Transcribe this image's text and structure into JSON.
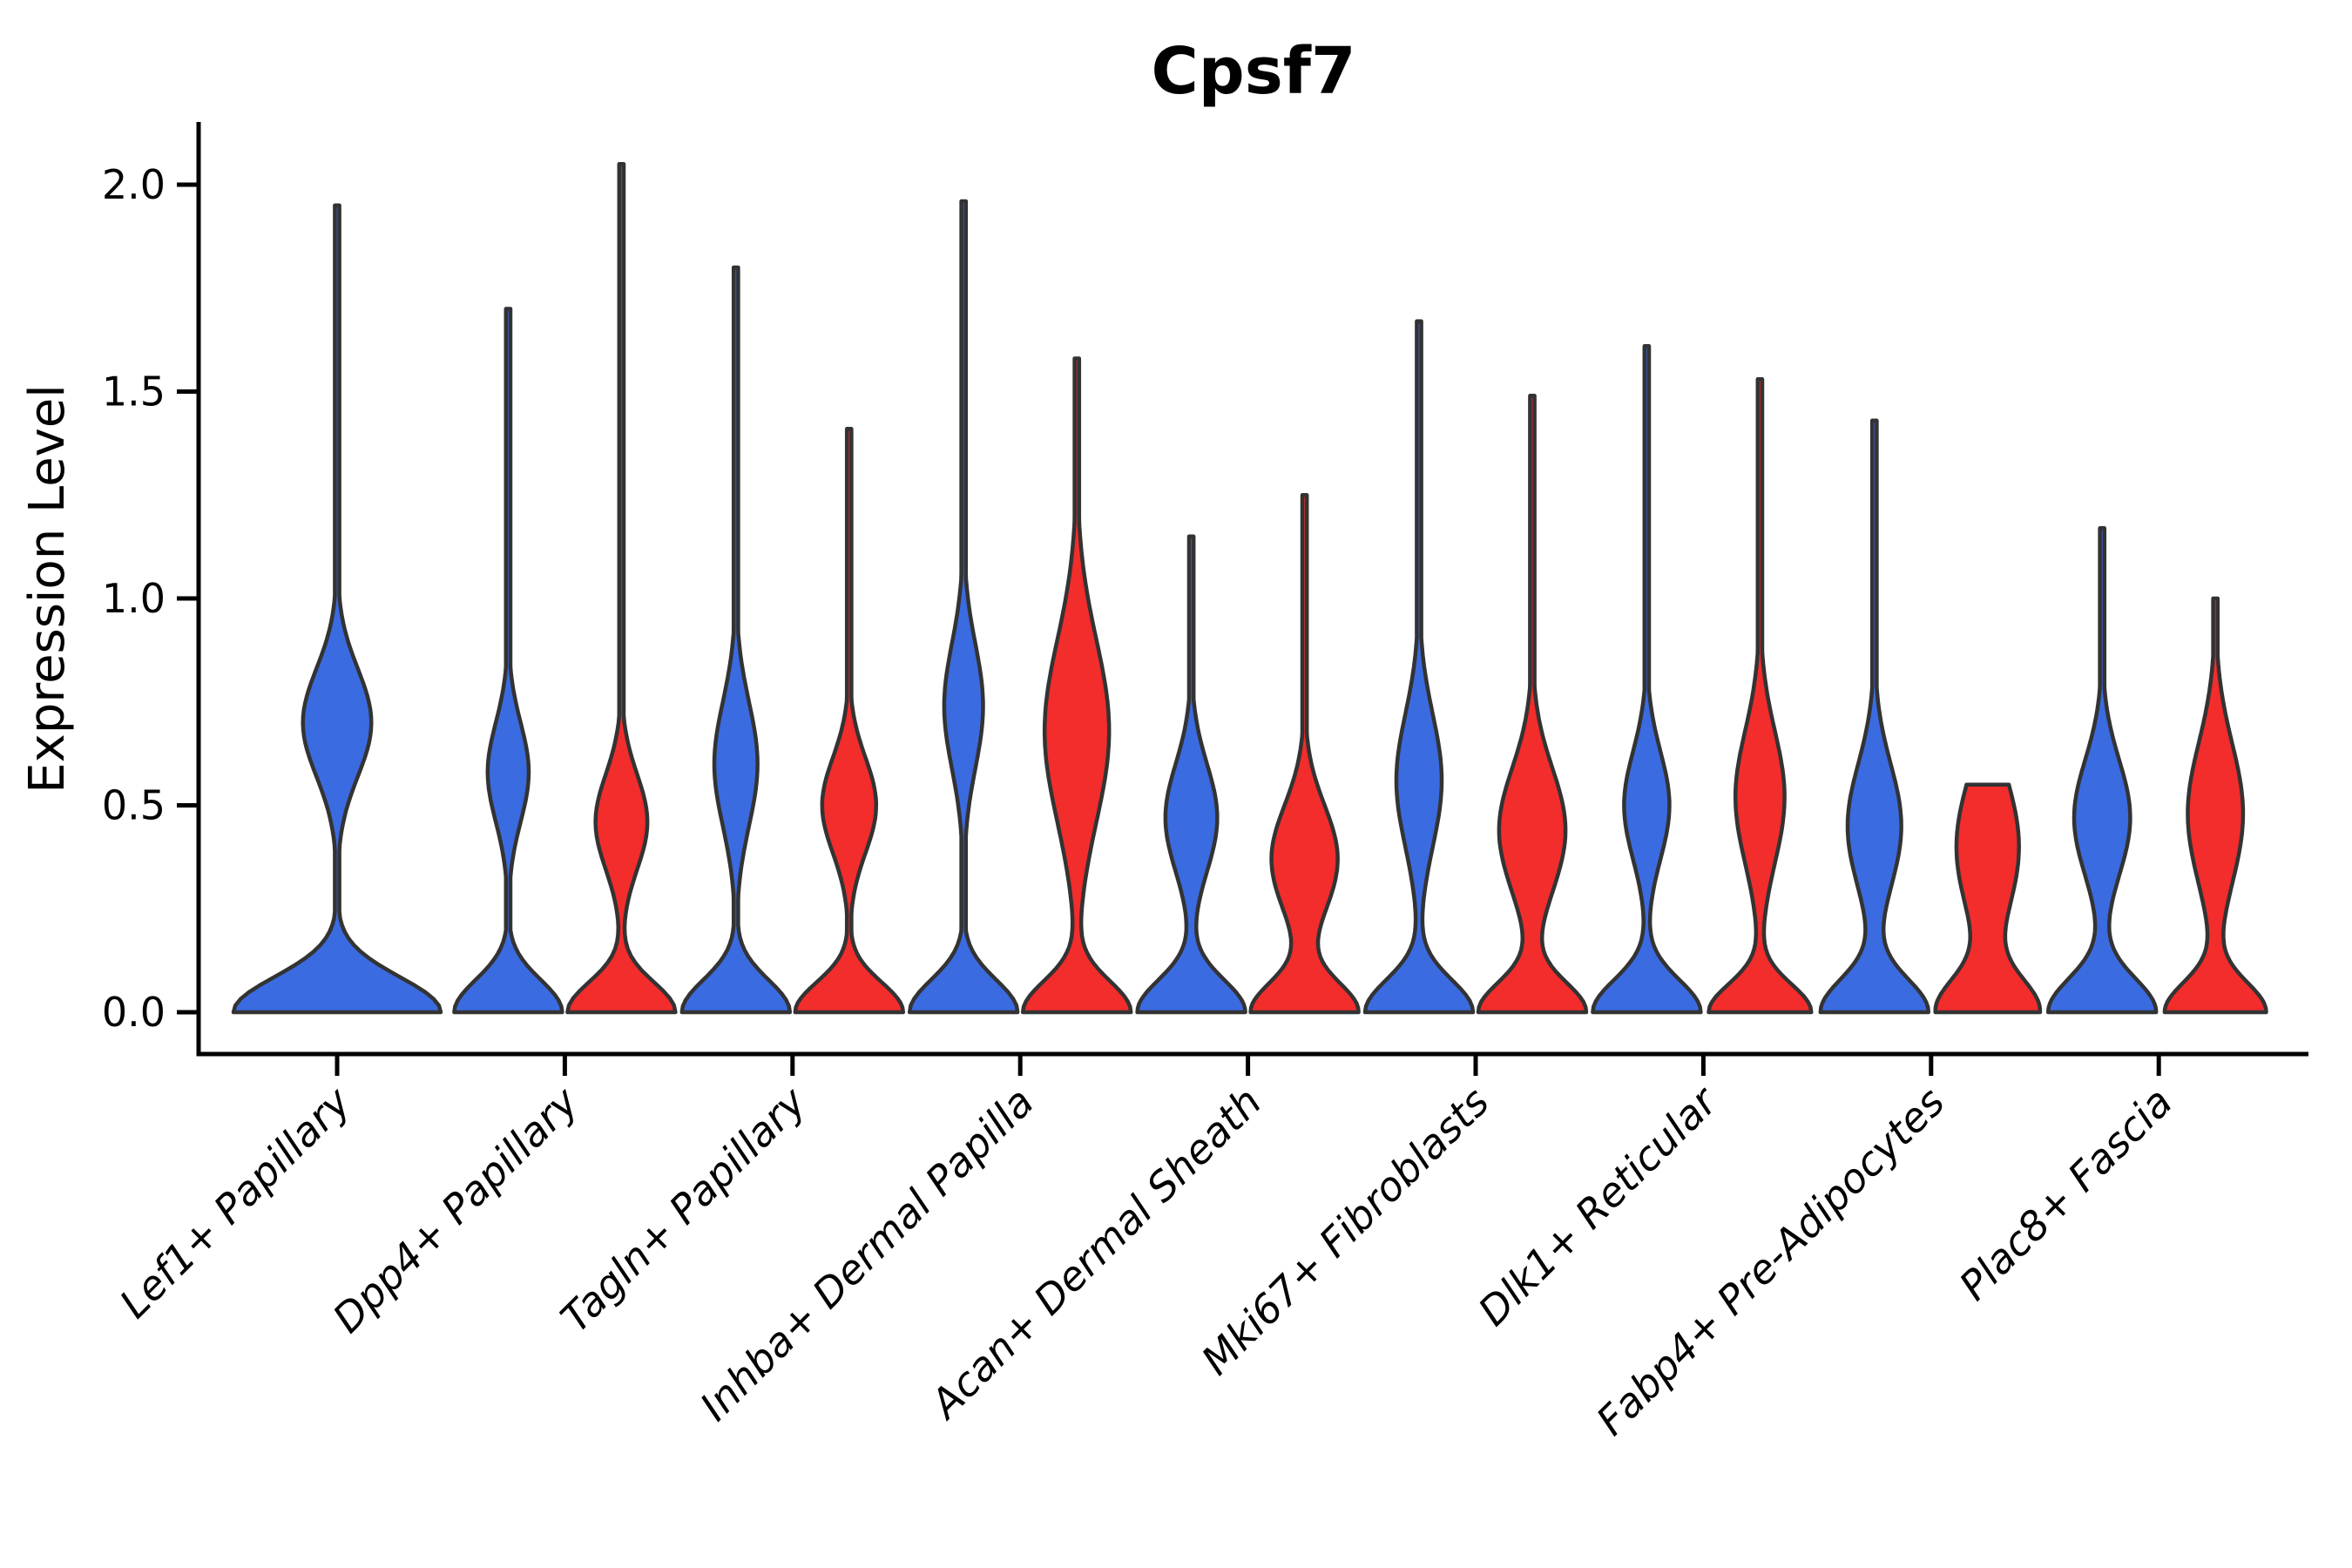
{
  "chart_data": {
    "type": "violin",
    "title": "Cpsf7",
    "ylabel": "Expression Level",
    "xlabel": "",
    "ylim": [
      0,
      2.15
    ],
    "yticks": [
      0,
      0.5,
      1.0,
      1.5,
      2.0
    ],
    "ytick_labels": [
      "0.0",
      "0.5",
      "1.0",
      "1.5",
      "2.0"
    ],
    "grid": false,
    "legend": "none",
    "groups": [
      {
        "id": "blue",
        "color": "#3b6be1"
      },
      {
        "id": "red",
        "color": "#f32c2c"
      }
    ],
    "outline_color": "#333333",
    "categories": [
      "Lef1+ Papillary",
      "Dpp4+ Papillary",
      "Tagln+ Papillary",
      "Inhba+ Dermal Papilla",
      "Acan+ Dermal Sheath",
      "Mki67+ Fibroblasts",
      "Dlk1+ Reticular",
      "Fabp4+ Pre-Adipocytes",
      "Plac8+ Fascia"
    ],
    "violins": [
      {
        "category_index": 0,
        "group": "blue",
        "side": "center",
        "max": 1.95,
        "mode": 0.0,
        "bulge_center": 0.7,
        "bulge_sigma": 0.13,
        "bulge_amp": 0.33,
        "base_sigma": 0.085,
        "width": 1.92,
        "flat_top": false
      },
      {
        "category_index": 1,
        "group": "blue",
        "side": "left",
        "max": 1.7,
        "mode": 0.0,
        "bulge_center": 0.58,
        "bulge_sigma": 0.12,
        "bulge_amp": 0.38,
        "base_sigma": 0.078,
        "width": 1.0,
        "flat_top": false
      },
      {
        "category_index": 1,
        "group": "red",
        "side": "right",
        "max": 2.05,
        "mode": 0.0,
        "bulge_center": 0.46,
        "bulge_sigma": 0.115,
        "bulge_amp": 0.48,
        "base_sigma": 0.072,
        "width": 1.0,
        "flat_top": false
      },
      {
        "category_index": 2,
        "group": "blue",
        "side": "left",
        "max": 1.8,
        "mode": 0.0,
        "bulge_center": 0.6,
        "bulge_sigma": 0.15,
        "bulge_amp": 0.4,
        "base_sigma": 0.078,
        "width": 1.0,
        "flat_top": false
      },
      {
        "category_index": 2,
        "group": "red",
        "side": "right",
        "max": 1.41,
        "mode": 0.0,
        "bulge_center": 0.5,
        "bulge_sigma": 0.115,
        "bulge_amp": 0.5,
        "base_sigma": 0.072,
        "width": 1.0,
        "flat_top": false
      },
      {
        "category_index": 3,
        "group": "blue",
        "side": "left",
        "max": 1.96,
        "mode": 0.0,
        "bulge_center": 0.74,
        "bulge_sigma": 0.15,
        "bulge_amp": 0.36,
        "base_sigma": 0.078,
        "width": 1.0,
        "flat_top": false
      },
      {
        "category_index": 3,
        "group": "red",
        "side": "right",
        "max": 1.58,
        "mode": 0.0,
        "bulge_center": 0.68,
        "bulge_sigma": 0.22,
        "bulge_amp": 0.6,
        "base_sigma": 0.075,
        "width": 1.0,
        "flat_top": false
      },
      {
        "category_index": 4,
        "group": "blue",
        "side": "left",
        "max": 1.15,
        "mode": 0.0,
        "bulge_center": 0.47,
        "bulge_sigma": 0.13,
        "bulge_amp": 0.48,
        "base_sigma": 0.078,
        "width": 1.0,
        "flat_top": false
      },
      {
        "category_index": 4,
        "group": "red",
        "side": "right",
        "max": 1.25,
        "mode": 0.0,
        "bulge_center": 0.37,
        "bulge_sigma": 0.13,
        "bulge_amp": 0.62,
        "base_sigma": 0.072,
        "width": 1.0,
        "flat_top": false
      },
      {
        "category_index": 5,
        "group": "blue",
        "side": "left",
        "max": 1.67,
        "mode": 0.0,
        "bulge_center": 0.56,
        "bulge_sigma": 0.16,
        "bulge_amp": 0.42,
        "base_sigma": 0.078,
        "width": 1.0,
        "flat_top": false
      },
      {
        "category_index": 5,
        "group": "red",
        "side": "right",
        "max": 1.49,
        "mode": 0.0,
        "bulge_center": 0.44,
        "bulge_sigma": 0.15,
        "bulge_amp": 0.62,
        "base_sigma": 0.072,
        "width": 1.0,
        "flat_top": false
      },
      {
        "category_index": 6,
        "group": "blue",
        "side": "left",
        "max": 1.61,
        "mode": 0.0,
        "bulge_center": 0.5,
        "bulge_sigma": 0.13,
        "bulge_amp": 0.42,
        "base_sigma": 0.078,
        "width": 1.0,
        "flat_top": false
      },
      {
        "category_index": 6,
        "group": "red",
        "side": "right",
        "max": 1.53,
        "mode": 0.0,
        "bulge_center": 0.52,
        "bulge_sigma": 0.16,
        "bulge_amp": 0.48,
        "base_sigma": 0.068,
        "width": 0.95,
        "flat_top": false
      },
      {
        "category_index": 7,
        "group": "blue",
        "side": "left",
        "max": 1.43,
        "mode": 0.0,
        "bulge_center": 0.45,
        "bulge_sigma": 0.15,
        "bulge_amp": 0.5,
        "base_sigma": 0.08,
        "width": 1.0,
        "flat_top": false
      },
      {
        "category_index": 7,
        "group": "red",
        "side": "right",
        "max": 0.55,
        "mode": 0.0,
        "bulge_center": 0.4,
        "bulge_sigma": 0.17,
        "bulge_amp": 0.62,
        "base_sigma": 0.08,
        "width": 0.97,
        "flat_top": true
      },
      {
        "category_index": 8,
        "group": "blue",
        "side": "left",
        "max": 1.17,
        "mode": 0.0,
        "bulge_center": 0.47,
        "bulge_sigma": 0.14,
        "bulge_amp": 0.52,
        "base_sigma": 0.082,
        "width": 1.0,
        "flat_top": false
      },
      {
        "category_index": 8,
        "group": "red",
        "side": "right",
        "max": 1.0,
        "mode": 0.0,
        "bulge_center": 0.48,
        "bulge_sigma": 0.17,
        "bulge_amp": 0.55,
        "base_sigma": 0.072,
        "width": 0.94,
        "flat_top": false
      }
    ]
  }
}
